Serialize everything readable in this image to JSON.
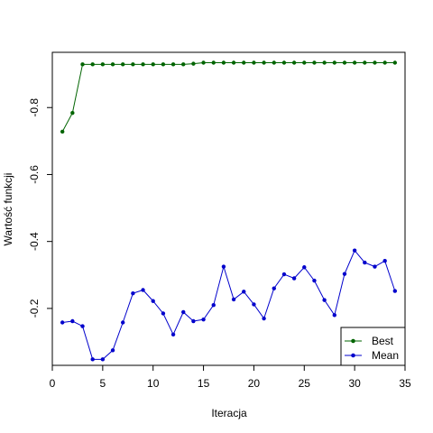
{
  "chart_data": {
    "type": "line",
    "title": "",
    "xlabel": "Iteracja",
    "ylabel": "Wartość funkcji",
    "x": [
      1,
      2,
      3,
      4,
      5,
      6,
      7,
      8,
      9,
      10,
      11,
      12,
      13,
      14,
      15,
      16,
      17,
      18,
      19,
      20,
      21,
      22,
      23,
      24,
      25,
      26,
      27,
      28,
      29,
      30,
      31,
      32,
      33,
      34
    ],
    "series": [
      {
        "name": "Best",
        "color": "#006400",
        "values": [
          -0.728,
          -0.784,
          -0.929,
          -0.929,
          -0.929,
          -0.929,
          -0.929,
          -0.929,
          -0.929,
          -0.929,
          -0.929,
          -0.929,
          -0.929,
          -0.931,
          -0.934,
          -0.934,
          -0.934,
          -0.934,
          -0.934,
          -0.934,
          -0.934,
          -0.934,
          -0.934,
          -0.934,
          -0.934,
          -0.934,
          -0.934,
          -0.934,
          -0.934,
          -0.934,
          -0.934,
          -0.934,
          -0.934,
          -0.934
        ]
      },
      {
        "name": "Mean",
        "color": "#0000cc",
        "values": [
          -0.158,
          -0.162,
          -0.147,
          -0.048,
          -0.048,
          -0.075,
          -0.158,
          -0.245,
          -0.255,
          -0.222,
          -0.185,
          -0.122,
          -0.189,
          -0.162,
          -0.167,
          -0.21,
          -0.325,
          -0.227,
          -0.25,
          -0.212,
          -0.17,
          -0.26,
          -0.302,
          -0.29,
          -0.323,
          -0.283,
          -0.225,
          -0.18,
          -0.303,
          -0.373,
          -0.337,
          -0.325,
          -0.342,
          -0.252
        ]
      }
    ],
    "xlim": [
      0,
      35
    ],
    "ylim": [
      -0.03,
      -0.965
    ],
    "xticks": [
      "0",
      "5",
      "10",
      "15",
      "20",
      "25",
      "30",
      "35"
    ],
    "yticks": [
      "-0.2",
      "-0.4",
      "-0.6",
      "-0.8"
    ],
    "grid": false,
    "legend_position": "bottom-right"
  }
}
